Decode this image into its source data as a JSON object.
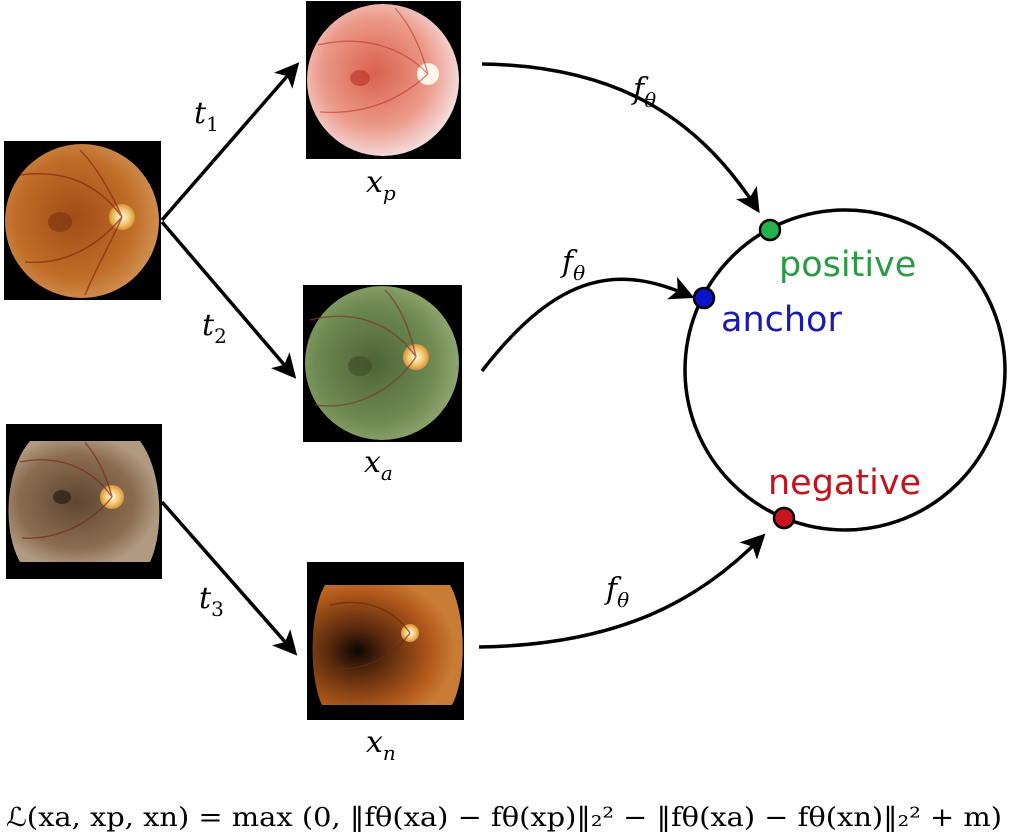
{
  "images": [
    {
      "id": "source-1",
      "kind": "fundus",
      "tint": "#b5631c",
      "rim": "#d8923f"
    },
    {
      "id": "x_p",
      "kind": "fundus",
      "tint": "#e79a86",
      "rim": "#f4d6da"
    },
    {
      "id": "x_a",
      "kind": "fundus",
      "tint": "#5f7a45",
      "rim": "#8fa56a"
    },
    {
      "id": "source-2",
      "kind": "fundus",
      "tint": "#7c5a3b",
      "rim": "#a98a6c"
    },
    {
      "id": "x_n",
      "kind": "fundus",
      "tint": "#9c4d16",
      "rim": "#c9782d"
    }
  ],
  "transforms": {
    "t1": {
      "base": "t",
      "sub": "1"
    },
    "t2": {
      "base": "t",
      "sub": "2"
    },
    "t3": {
      "base": "t",
      "sub": "3"
    }
  },
  "image_labels": {
    "xp": {
      "base": "x",
      "sub": "p"
    },
    "xa": {
      "base": "x",
      "sub": "a"
    },
    "xn": {
      "base": "x",
      "sub": "n"
    }
  },
  "encoder": {
    "base": "f",
    "sub": "θ"
  },
  "embedding_points": {
    "positive": {
      "label": "positive",
      "color": "#2a9a44",
      "dot_color": "#22b14c"
    },
    "anchor": {
      "label": "anchor",
      "color": "#1a1ab0",
      "dot_color": "#0a14c8"
    },
    "negative": {
      "label": "negative",
      "color": "#c0141e",
      "dot_color": "#c8141e"
    }
  },
  "loss": {
    "text": "ℒ(xa, xp, xn) = max (0, ‖fθ(xa) − fθ(xp)‖₂² − ‖fθ(xa) − fθ(xn)‖₂² + m)"
  }
}
